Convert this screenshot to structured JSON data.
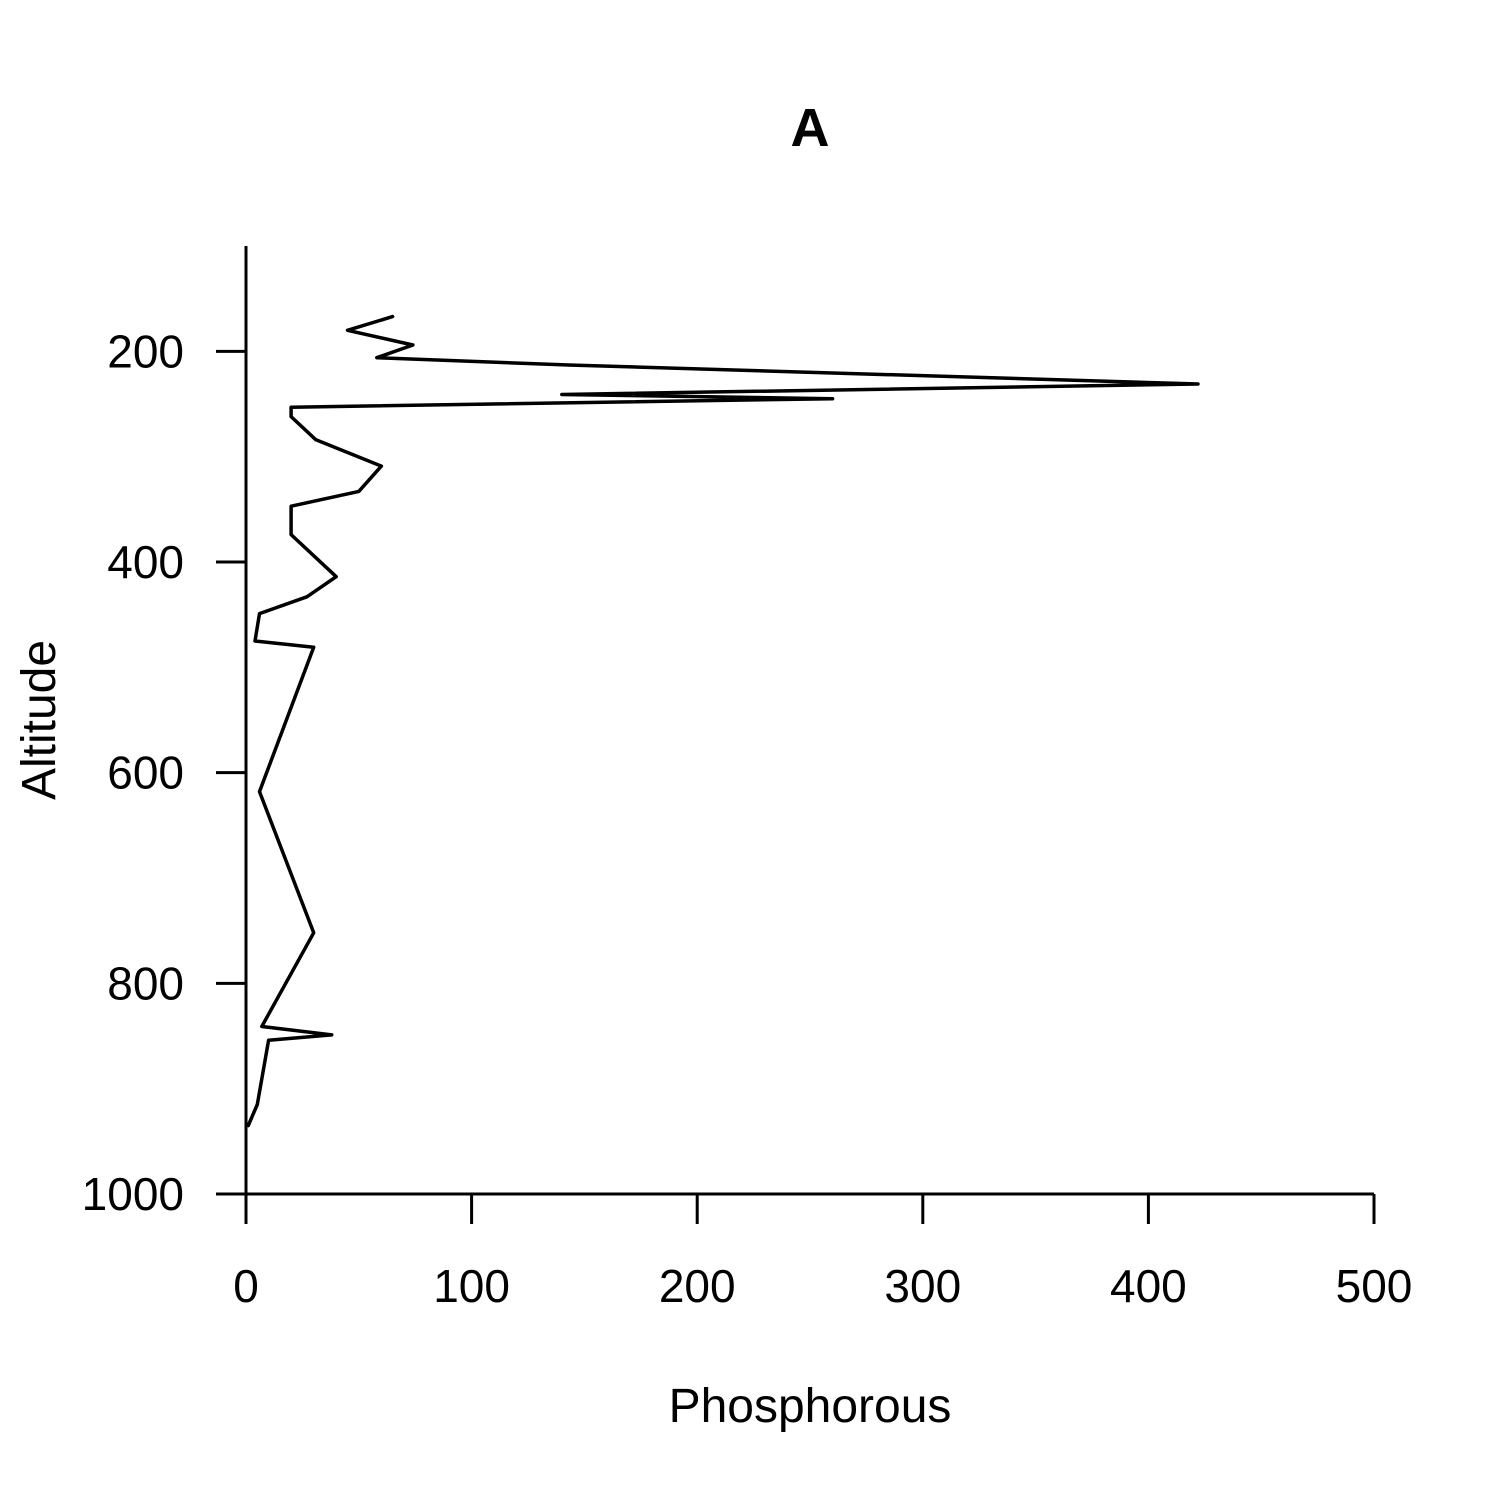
{
  "chart_data": {
    "type": "line",
    "title": "A",
    "xlabel": "Phosphorous",
    "ylabel": "Altitude",
    "xlim": [
      0,
      500
    ],
    "ylim": [
      1000,
      100
    ],
    "y_reversed": true,
    "grid": false,
    "x_ticks": [
      0,
      100,
      200,
      300,
      400,
      500
    ],
    "y_ticks": [
      200,
      400,
      600,
      800,
      1000
    ],
    "x_tick_labels": [
      "0",
      "100",
      "200",
      "300",
      "400",
      "500"
    ],
    "y_tick_labels": [
      "200",
      "400",
      "600",
      "800",
      "1000"
    ],
    "series": [
      {
        "color": "#000000",
        "points": [
          {
            "x": 65,
            "y": 167
          },
          {
            "x": 45,
            "y": 180
          },
          {
            "x": 74,
            "y": 194
          },
          {
            "x": 58,
            "y": 206
          },
          {
            "x": 143,
            "y": 213
          },
          {
            "x": 422,
            "y": 231
          },
          {
            "x": 140,
            "y": 241
          },
          {
            "x": 260,
            "y": 245
          },
          {
            "x": 20,
            "y": 253
          },
          {
            "x": 20,
            "y": 262
          },
          {
            "x": 31,
            "y": 284
          },
          {
            "x": 60,
            "y": 309
          },
          {
            "x": 50,
            "y": 333
          },
          {
            "x": 20,
            "y": 347
          },
          {
            "x": 20,
            "y": 374
          },
          {
            "x": 40,
            "y": 414
          },
          {
            "x": 27,
            "y": 433
          },
          {
            "x": 6,
            "y": 449
          },
          {
            "x": 4,
            "y": 475
          },
          {
            "x": 30,
            "y": 481
          },
          {
            "x": 6,
            "y": 618
          },
          {
            "x": 30,
            "y": 752
          },
          {
            "x": 7,
            "y": 841
          },
          {
            "x": 38,
            "y": 849
          },
          {
            "x": 10,
            "y": 854
          },
          {
            "x": 5,
            "y": 915
          },
          {
            "x": 1,
            "y": 935
          }
        ]
      }
    ]
  }
}
